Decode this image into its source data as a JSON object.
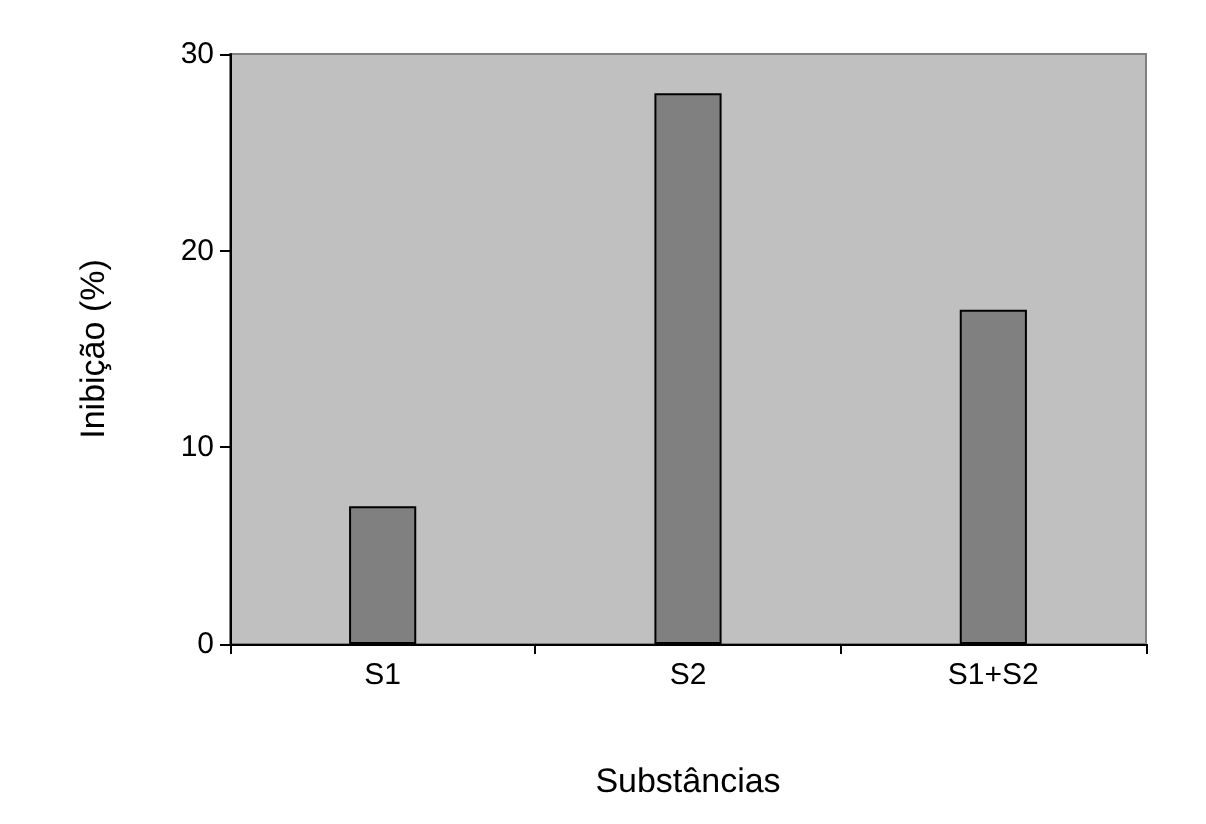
{
  "chart_data": {
    "type": "bar",
    "xlabel": "Substâncias",
    "ylabel": "Inibição (%)",
    "categories": [
      "S1",
      "S2",
      "S1+S2"
    ],
    "values": [
      7,
      28,
      17
    ],
    "color": "#808080",
    "ylim": [
      0,
      30
    ],
    "yticks": [
      0,
      10,
      20,
      30
    ],
    "grid": false
  }
}
